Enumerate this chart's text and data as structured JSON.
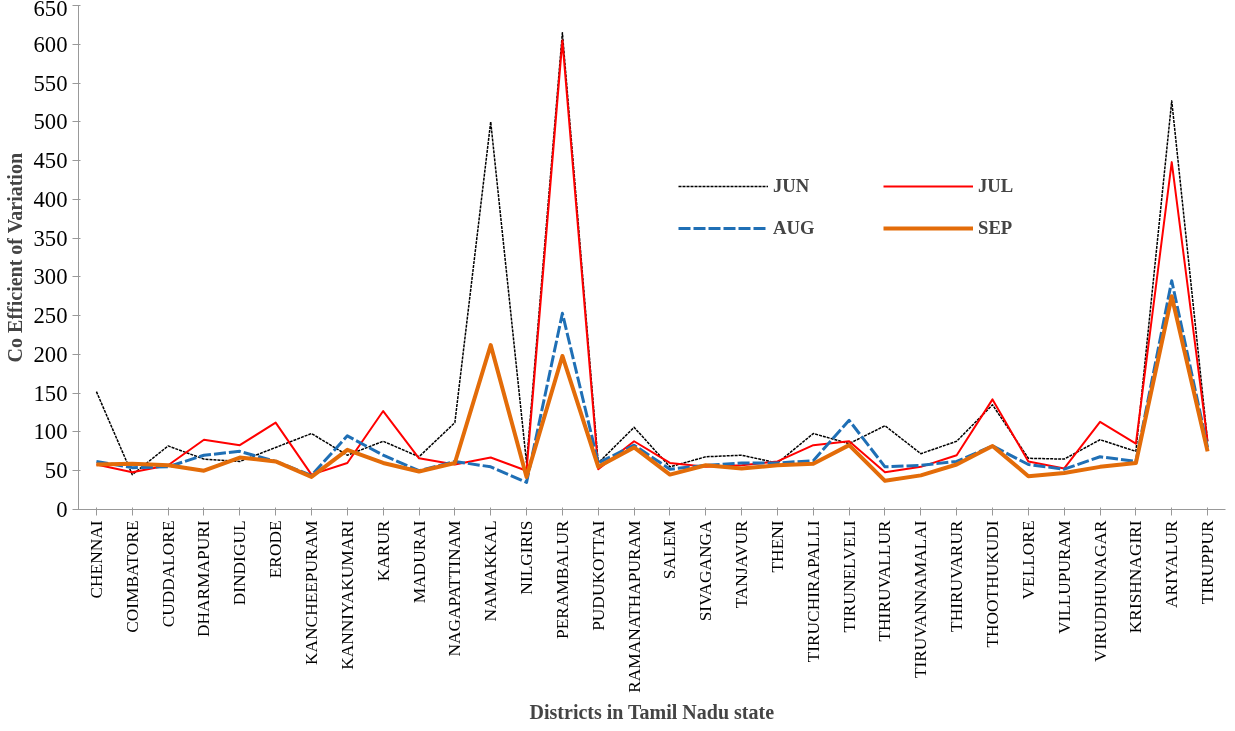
{
  "chart_data": {
    "type": "line",
    "xlabel": "Districts in Tamil Nadu state",
    "ylabel": "Co Efficient of Variation",
    "categories": [
      "CHENNAI",
      "COIMBATORE",
      "CUDDALORE",
      "DHARMAPURI",
      "DINDIGUL",
      "ERODE",
      "KANCHEEPURAM",
      "KANNIYAKUMARI",
      "KARUR",
      "MADURAI",
      "NAGAPATTINAM",
      "NAMAKKAL",
      "NILGIRIS",
      "PERAMBALUR",
      "PUDUKOTTAI",
      "RAMANATHAPURAM",
      "SALEM",
      "SIVAGANGA",
      "TANJAVUR",
      "THENI",
      "TIRUCHIRAPALLI",
      "TIRUNELVELI",
      "THIRUVALLUR",
      "TIRUVANNAMALAI",
      "THIRUVARUR",
      "THOOTHUKUDI",
      "VELLORE",
      "VILLUPURAM",
      "VIRUDHUNAGAR",
      "KRISHNAGIRI",
      "ARIYALUR",
      "TIRUPPUR"
    ],
    "series": [
      {
        "name": "JUN",
        "color": "#000000",
        "line_style": "dotted",
        "values": [
          152,
          45,
          82,
          65,
          62,
          80,
          98,
          70,
          88,
          68,
          112,
          500,
          60,
          615,
          60,
          106,
          55,
          68,
          70,
          60,
          98,
          85,
          108,
          72,
          88,
          135,
          66,
          65,
          90,
          75,
          527,
          88
        ]
      },
      {
        "name": "JUL",
        "color": "#ff0000",
        "line_style": "solid",
        "values": [
          58,
          48,
          57,
          90,
          83,
          112,
          45,
          60,
          127,
          66,
          58,
          67,
          50,
          605,
          52,
          88,
          60,
          55,
          57,
          62,
          83,
          88,
          48,
          55,
          70,
          142,
          62,
          53,
          113,
          85,
          448,
          88
        ]
      },
      {
        "name": "AUG",
        "color": "#1f6fb5",
        "line_style": "dashed",
        "values": [
          62,
          54,
          55,
          70,
          75,
          62,
          44,
          95,
          70,
          50,
          62,
          55,
          35,
          253,
          60,
          83,
          52,
          57,
          60,
          60,
          63,
          115,
          55,
          57,
          62,
          82,
          58,
          52,
          68,
          62,
          295,
          80
        ]
      },
      {
        "name": "SEP",
        "color": "#e36c09",
        "line_style": "solid",
        "values": [
          58,
          59,
          57,
          50,
          67,
          62,
          42,
          77,
          60,
          49,
          60,
          212,
          42,
          198,
          55,
          80,
          45,
          57,
          53,
          57,
          59,
          83,
          37,
          44,
          58,
          82,
          43,
          47,
          55,
          60,
          275,
          75
        ]
      }
    ],
    "ylim": [
      0,
      650
    ],
    "yticks": [
      0,
      50,
      100,
      150,
      200,
      250,
      300,
      350,
      400,
      450,
      500,
      550,
      600,
      650
    ],
    "grid": false,
    "legend": "top right",
    "marker": "none"
  }
}
